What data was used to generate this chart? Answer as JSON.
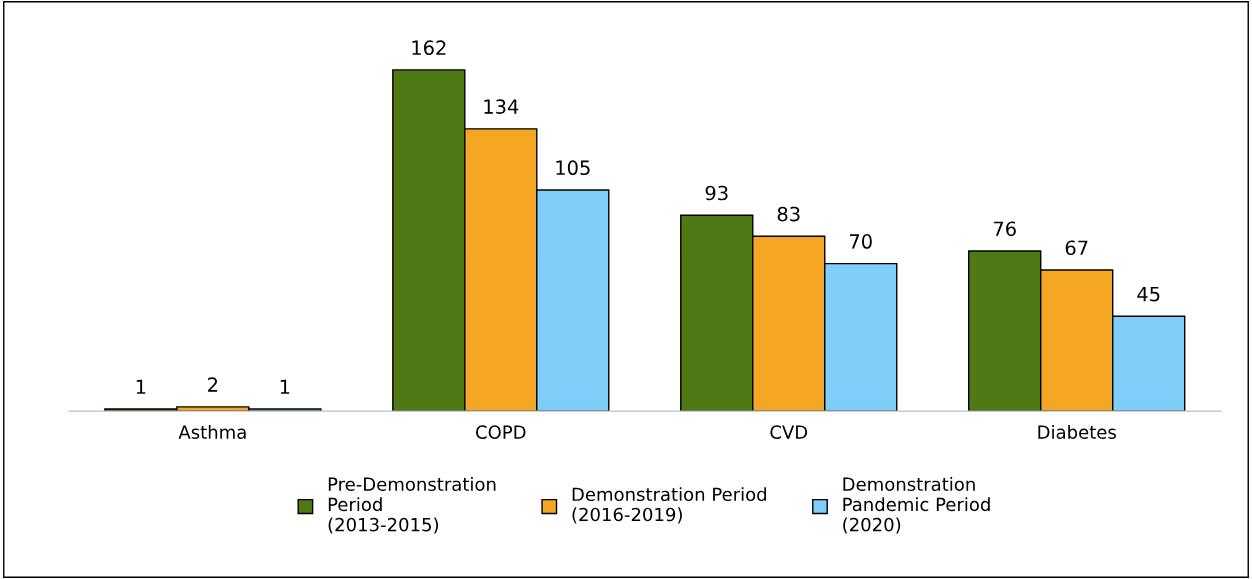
{
  "chart_data": {
    "type": "bar",
    "categories": [
      "Asthma",
      "COPD",
      "CVD",
      "Diabetes"
    ],
    "series": [
      {
        "name": "Pre-Demonstration\nPeriod\n(2013-2015)",
        "color": "#4e7a16",
        "values": [
          1,
          162,
          93,
          76
        ]
      },
      {
        "name": "Demonstration Period\n(2016-2019)",
        "color": "#f5a623",
        "values": [
          2,
          134,
          83,
          67
        ]
      },
      {
        "name": "Demonstration\nPandemic Period\n(2020)",
        "color": "#7fcdf9",
        "values": [
          1,
          105,
          70,
          45
        ]
      }
    ],
    "data_labels": true,
    "legend": "bottom",
    "grid": false
  }
}
